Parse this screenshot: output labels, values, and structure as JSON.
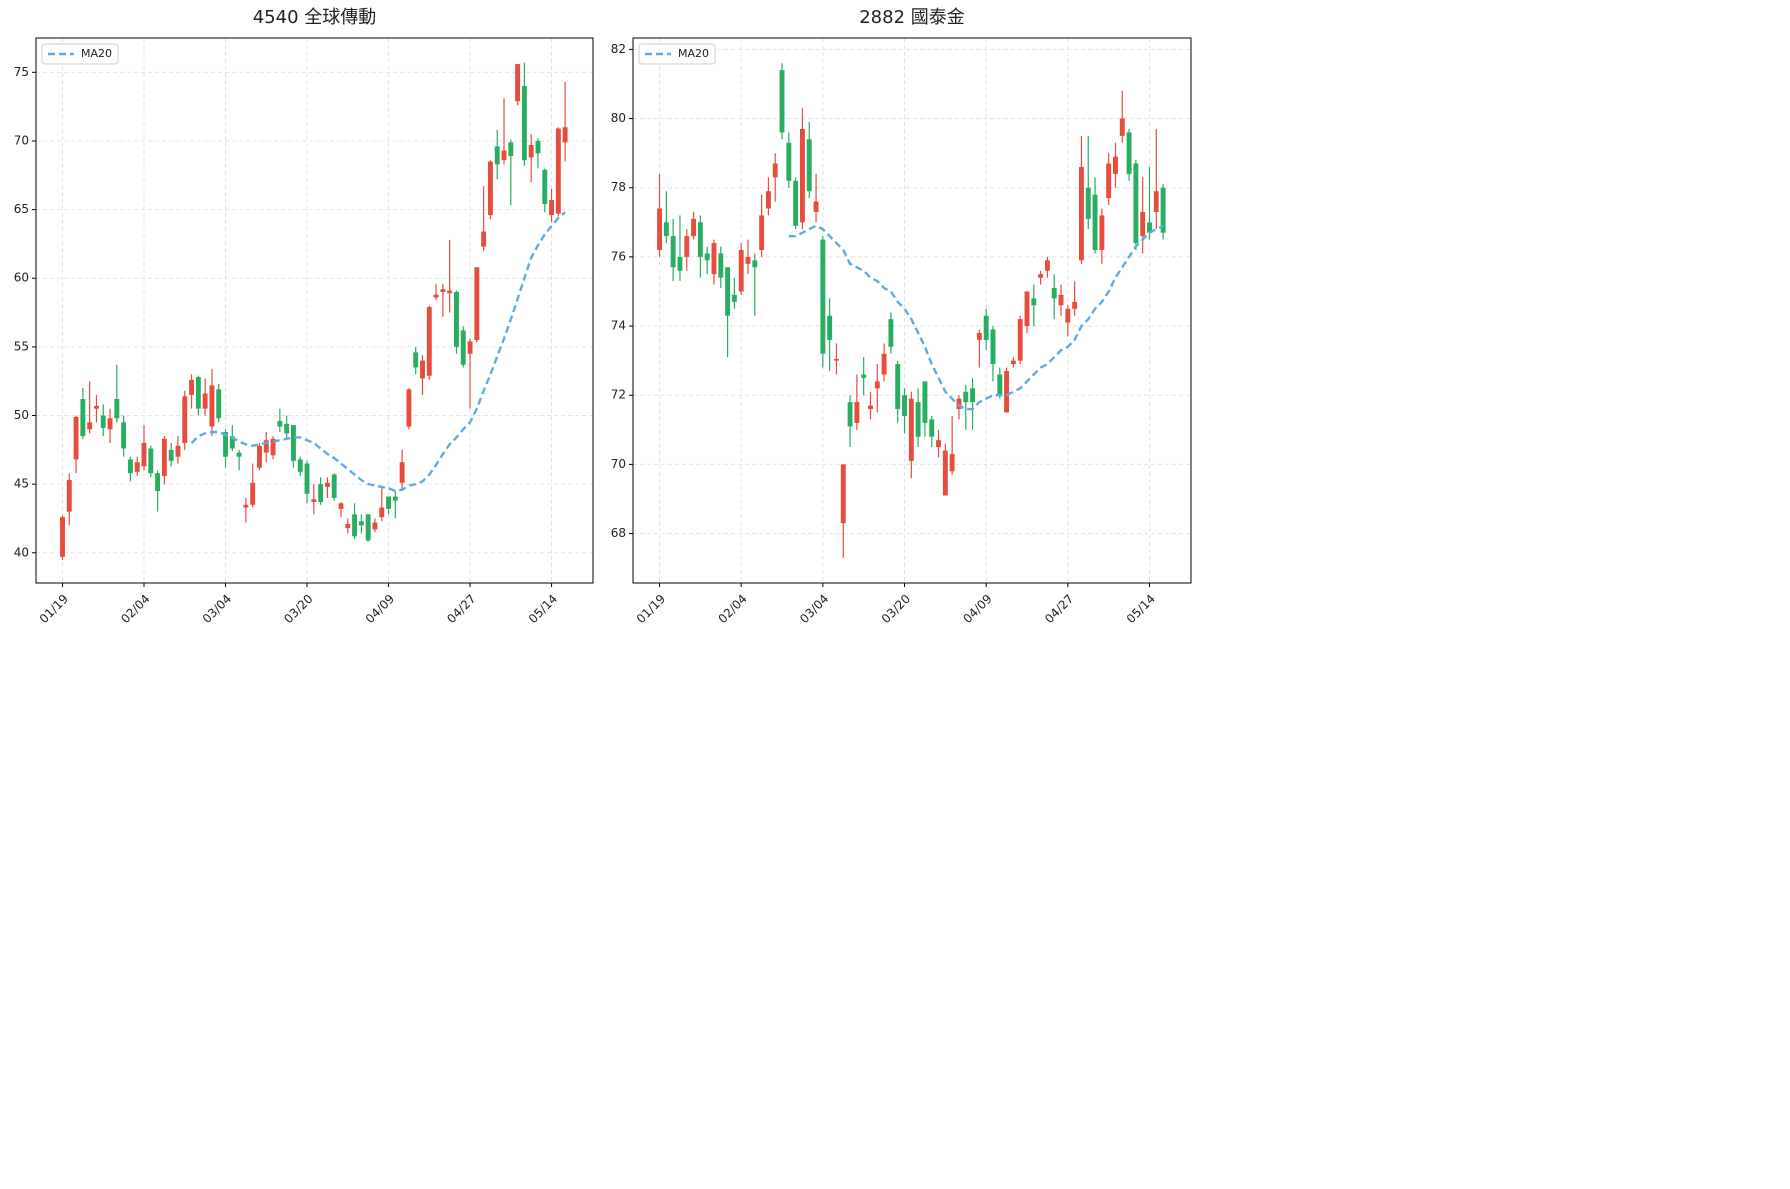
{
  "chart_data": [
    {
      "type": "candlestick",
      "title": "4540 全球傳動",
      "categories": [
        "01/19",
        null,
        null,
        null,
        null,
        null,
        null,
        null,
        null,
        null,
        null,
        null,
        "02/04",
        null,
        null,
        null,
        null,
        null,
        null,
        null,
        null,
        null,
        null,
        null,
        "03/04",
        null,
        null,
        null,
        null,
        null,
        null,
        null,
        null,
        null,
        null,
        null,
        "03/20",
        null,
        null,
        null,
        null,
        null,
        null,
        null,
        null,
        null,
        null,
        null,
        "04/09",
        null,
        null,
        null,
        null,
        null,
        null,
        null,
        null,
        null,
        null,
        null,
        "04/27",
        null,
        null,
        null,
        null,
        null,
        null,
        null,
        null,
        null,
        null,
        null,
        "05/14",
        null,
        null
      ],
      "open": [
        39.7,
        43,
        46.8,
        51.2,
        49,
        50.5,
        50,
        49,
        51.2,
        49.5,
        46.8,
        45.9,
        46.3,
        47.6,
        45.8,
        45.6,
        47.5,
        47,
        48,
        51.5,
        52.8,
        50.5,
        49.2,
        51.9,
        48.8,
        48.5,
        47.3,
        43.3,
        43.5,
        46.2,
        47.3,
        47.1,
        49.6,
        49.4,
        49.3,
        46.8,
        46.5,
        43.7,
        45,
        44.8,
        45.7,
        43.2,
        41.8,
        42.8,
        42.3,
        42.8,
        41.7,
        42.6,
        44.1,
        44.1,
        45.1,
        49.2,
        54.6,
        52.7,
        52.9,
        58.6,
        59,
        58.9,
        59,
        56.2,
        54.5,
        55.5,
        62.3,
        64.6,
        69.6,
        68.6,
        69.9,
        72.9,
        74,
        68.8,
        70,
        67.9,
        64.6,
        64.7,
        69.9
      ],
      "high": [
        42.7,
        45.8,
        50,
        52,
        52.5,
        51.5,
        50.8,
        50.5,
        53.7,
        50,
        47,
        47,
        49.3,
        47.8,
        46,
        48.5,
        48,
        48.5,
        51.8,
        53,
        52.9,
        52.7,
        53.4,
        52.3,
        49,
        49.3,
        47.5,
        44,
        46.5,
        48,
        48.8,
        48.5,
        50.5,
        50,
        49.3,
        47,
        46.7,
        45,
        45.5,
        45.5,
        45.8,
        43.7,
        42.5,
        43.6,
        42.8,
        42.8,
        42.5,
        44.7,
        44.1,
        44.5,
        47.5,
        52,
        55,
        54.4,
        58,
        59.6,
        59.6,
        62.8,
        59.1,
        56.5,
        55.6,
        60.8,
        66.7,
        68.6,
        70.8,
        73.1,
        70.1,
        75.6,
        75.7,
        70.5,
        70.2,
        68,
        66.5,
        71,
        74.3
      ],
      "low": [
        39.5,
        42,
        45.8,
        48.3,
        48.7,
        49.5,
        48.5,
        48,
        49.5,
        47,
        45.2,
        45.6,
        46,
        45.5,
        43,
        45,
        46.3,
        46.5,
        47.5,
        50.5,
        50,
        50,
        48.5,
        49.5,
        46.2,
        47.4,
        46,
        42.2,
        43.3,
        46,
        46.6,
        46.8,
        48.8,
        48.3,
        46.2,
        45.6,
        43.6,
        42.8,
        43.5,
        44,
        43.8,
        42.6,
        41.4,
        41,
        41.4,
        40.8,
        41.5,
        42.3,
        42.8,
        42.5,
        44.5,
        49,
        53,
        51.5,
        52.6,
        58.4,
        57.2,
        57.5,
        54.5,
        53.5,
        50.5,
        55.3,
        62,
        64.3,
        67.2,
        68.3,
        65.3,
        72.6,
        68.2,
        67,
        68,
        64.8,
        64.1,
        64.5,
        68.5
      ],
      "close": [
        42.6,
        45.3,
        49.9,
        48.5,
        49.5,
        50.7,
        49.1,
        49.8,
        49.8,
        47.6,
        45.8,
        46.6,
        48,
        45.8,
        44.5,
        48.3,
        46.7,
        47.8,
        51.4,
        52.6,
        50.5,
        51.6,
        52.2,
        49.8,
        47,
        47.6,
        47,
        43.5,
        45.1,
        47.8,
        48.2,
        48.3,
        49.2,
        48.7,
        46.7,
        45.9,
        44.3,
        43.9,
        43.7,
        45.1,
        44,
        43.6,
        42.1,
        41.2,
        42,
        40.9,
        42.2,
        43.3,
        43.2,
        43.8,
        46.6,
        51.9,
        53.5,
        54,
        57.9,
        58.8,
        59.2,
        59.1,
        55,
        53.7,
        55.4,
        60.8,
        63.4,
        68.5,
        68.3,
        69.3,
        68.9,
        75.6,
        68.6,
        69.7,
        69.1,
        65.4,
        65.7,
        70.9,
        71
      ],
      "up_color": "#e74c3c",
      "down_color": "#27ae60",
      "lines": [
        {
          "name": "MA20",
          "color": "#5dade2",
          "values": [
            null,
            null,
            null,
            null,
            null,
            null,
            null,
            null,
            null,
            null,
            null,
            null,
            null,
            null,
            null,
            null,
            null,
            null,
            null,
            48.0,
            48.5,
            48.7,
            48.8,
            48.8,
            48.6,
            48.4,
            48.1,
            47.9,
            47.8,
            47.9,
            48.0,
            48.1,
            48.2,
            48.3,
            48.4,
            48.4,
            48.2,
            48.0,
            47.6,
            47.2,
            46.9,
            46.5,
            46.1,
            45.7,
            45.3,
            45.0,
            44.9,
            44.8,
            44.7,
            44.5,
            44.6,
            44.9,
            45.0,
            45.2,
            45.7,
            46.4,
            47.2,
            47.9,
            48.4,
            49.0,
            49.5,
            50.5,
            51.8,
            53.0,
            54.3,
            55.6,
            57.0,
            58.5,
            60.0,
            61.5,
            62.4,
            63.2,
            63.8,
            64.4,
            64.8
          ]
        }
      ],
      "ylim": [
        37.8,
        77.5
      ],
      "yticks": [
        40,
        45,
        50,
        55,
        60,
        65,
        70,
        75
      ],
      "grid": true,
      "legend": "upper left"
    },
    {
      "type": "candlestick",
      "title": "2882 國泰金",
      "categories": [
        "01/19",
        null,
        null,
        null,
        null,
        null,
        null,
        null,
        null,
        null,
        null,
        null,
        "02/04",
        null,
        null,
        null,
        null,
        null,
        null,
        null,
        null,
        null,
        null,
        null,
        "03/04",
        null,
        null,
        null,
        null,
        null,
        null,
        null,
        null,
        null,
        null,
        null,
        "03/20",
        null,
        null,
        null,
        null,
        null,
        null,
        null,
        null,
        null,
        null,
        null,
        "04/09",
        null,
        null,
        null,
        null,
        null,
        null,
        null,
        null,
        null,
        null,
        null,
        "04/27",
        null,
        null,
        null,
        null,
        null,
        null,
        null,
        null,
        null,
        null,
        null,
        "05/14",
        null,
        null
      ],
      "open": [
        76.2,
        77,
        76.6,
        76,
        76,
        76.6,
        77,
        76.1,
        75.5,
        76.1,
        75.7,
        74.9,
        75,
        75.8,
        75.9,
        76.2,
        77.4,
        78.3,
        81.4,
        79.3,
        78.2,
        77,
        79.4,
        77.3,
        76.5,
        74.3,
        73,
        68.3,
        71.8,
        71.2,
        72.6,
        71.6,
        72.2,
        72.6,
        74.2,
        72.9,
        72,
        70.1,
        71.8,
        72.4,
        71.3,
        70.5,
        69.1,
        69.8,
        71.6,
        72.1,
        72.2,
        73.6,
        74.3,
        73.9,
        72.6,
        71.5,
        72.9,
        73,
        74,
        74.8,
        75.4,
        75.6,
        75.1,
        74.6,
        74.1,
        74.5,
        75.9,
        78,
        77.8,
        76.2,
        77.7,
        78.4,
        79.5,
        79.6,
        78.7,
        76.6,
        77,
        77.3,
        78
      ],
      "high": [
        78.4,
        77.9,
        77.1,
        77.2,
        76.8,
        77.3,
        77.2,
        76.3,
        76.5,
        76.3,
        75.7,
        75.4,
        76.4,
        76.5,
        76.1,
        77.8,
        78.3,
        79,
        81.6,
        79.6,
        78.3,
        80.3,
        79.9,
        78.4,
        76.6,
        74.8,
        73.5,
        70,
        72,
        72.6,
        73.1,
        72.1,
        72.9,
        73.5,
        74.4,
        73,
        72.2,
        72.1,
        72.2,
        72.4,
        71.4,
        71,
        70.6,
        71.4,
        72,
        72.3,
        72.5,
        73.9,
        74.5,
        74,
        72.8,
        72.8,
        73.1,
        74.3,
        75,
        75.2,
        75.6,
        76,
        75.5,
        75.2,
        74.6,
        75.3,
        79.5,
        79.5,
        78.3,
        77.4,
        79,
        79.3,
        80.8,
        79.7,
        78.8,
        78.3,
        78.6,
        79.7,
        78.1
      ],
      "low": [
        76,
        76.4,
        75.3,
        75.3,
        75.6,
        76.5,
        75.4,
        75.5,
        75.2,
        75.1,
        73.1,
        74.5,
        74.9,
        75.5,
        74.3,
        76,
        77.2,
        77.6,
        79.4,
        78,
        76.8,
        76.8,
        77.7,
        77,
        72.8,
        72.7,
        72.6,
        67.3,
        70.5,
        71,
        72,
        71.3,
        71.5,
        72.4,
        73.2,
        71.2,
        70.9,
        69.6,
        70.5,
        70.8,
        70.5,
        70.2,
        69.1,
        69.7,
        71.3,
        71,
        71,
        72.8,
        73.3,
        72.4,
        71.9,
        71.5,
        72.8,
        72.9,
        73.8,
        74,
        75.2,
        75.4,
        74.2,
        74.3,
        73.7,
        74.3,
        75.8,
        76.8,
        76.1,
        75.8,
        77.5,
        78,
        79.3,
        78.2,
        76.2,
        76.1,
        76.5,
        76.8,
        76.5
      ],
      "close": [
        77.4,
        76.6,
        75.7,
        75.6,
        76.6,
        77.1,
        76,
        75.9,
        76.4,
        75.4,
        74.3,
        74.7,
        76.2,
        76,
        75.7,
        77.2,
        77.9,
        78.7,
        79.6,
        78.2,
        76.9,
        79.7,
        77.9,
        77.6,
        73.2,
        73.6,
        73.05,
        70,
        71.1,
        71.8,
        72.5,
        71.7,
        72.4,
        73.2,
        73.4,
        71.6,
        71.4,
        71.9,
        70.8,
        71.2,
        70.8,
        70.7,
        70.4,
        70.3,
        71.9,
        71.8,
        71.8,
        73.8,
        73.6,
        72.9,
        72,
        72.7,
        73,
        74.2,
        75,
        74.6,
        75.5,
        75.9,
        74.8,
        74.9,
        74.5,
        74.7,
        78.6,
        77.1,
        76.2,
        77.2,
        78.7,
        78.9,
        80,
        78.4,
        76.4,
        77.3,
        76.7,
        77.9,
        76.7
      ],
      "up_color": "#e74c3c",
      "down_color": "#27ae60",
      "lines": [
        {
          "name": "MA20",
          "color": "#5dade2",
          "values": [
            null,
            null,
            null,
            null,
            null,
            null,
            null,
            null,
            null,
            null,
            null,
            null,
            null,
            null,
            null,
            null,
            null,
            null,
            null,
            76.6,
            76.6,
            76.7,
            76.8,
            76.9,
            76.8,
            76.6,
            76.4,
            76.2,
            75.8,
            75.7,
            75.6,
            75.4,
            75.3,
            75.1,
            75.0,
            74.7,
            74.5,
            74.2,
            73.8,
            73.4,
            72.9,
            72.5,
            72.1,
            71.9,
            71.7,
            71.6,
            71.6,
            71.8,
            71.9,
            72.0,
            72.0,
            72.0,
            72.1,
            72.2,
            72.4,
            72.6,
            72.8,
            72.9,
            73.1,
            73.3,
            73.4,
            73.6,
            74.0,
            74.2,
            74.5,
            74.7,
            75.0,
            75.4,
            75.7,
            76.0,
            76.3,
            76.5,
            76.7,
            76.8,
            76.9
          ]
        }
      ],
      "ylim": [
        66.57,
        82.33
      ],
      "yticks": [
        68,
        70,
        72,
        74,
        76,
        78,
        80,
        82
      ],
      "grid": true,
      "legend": "upper left"
    }
  ]
}
